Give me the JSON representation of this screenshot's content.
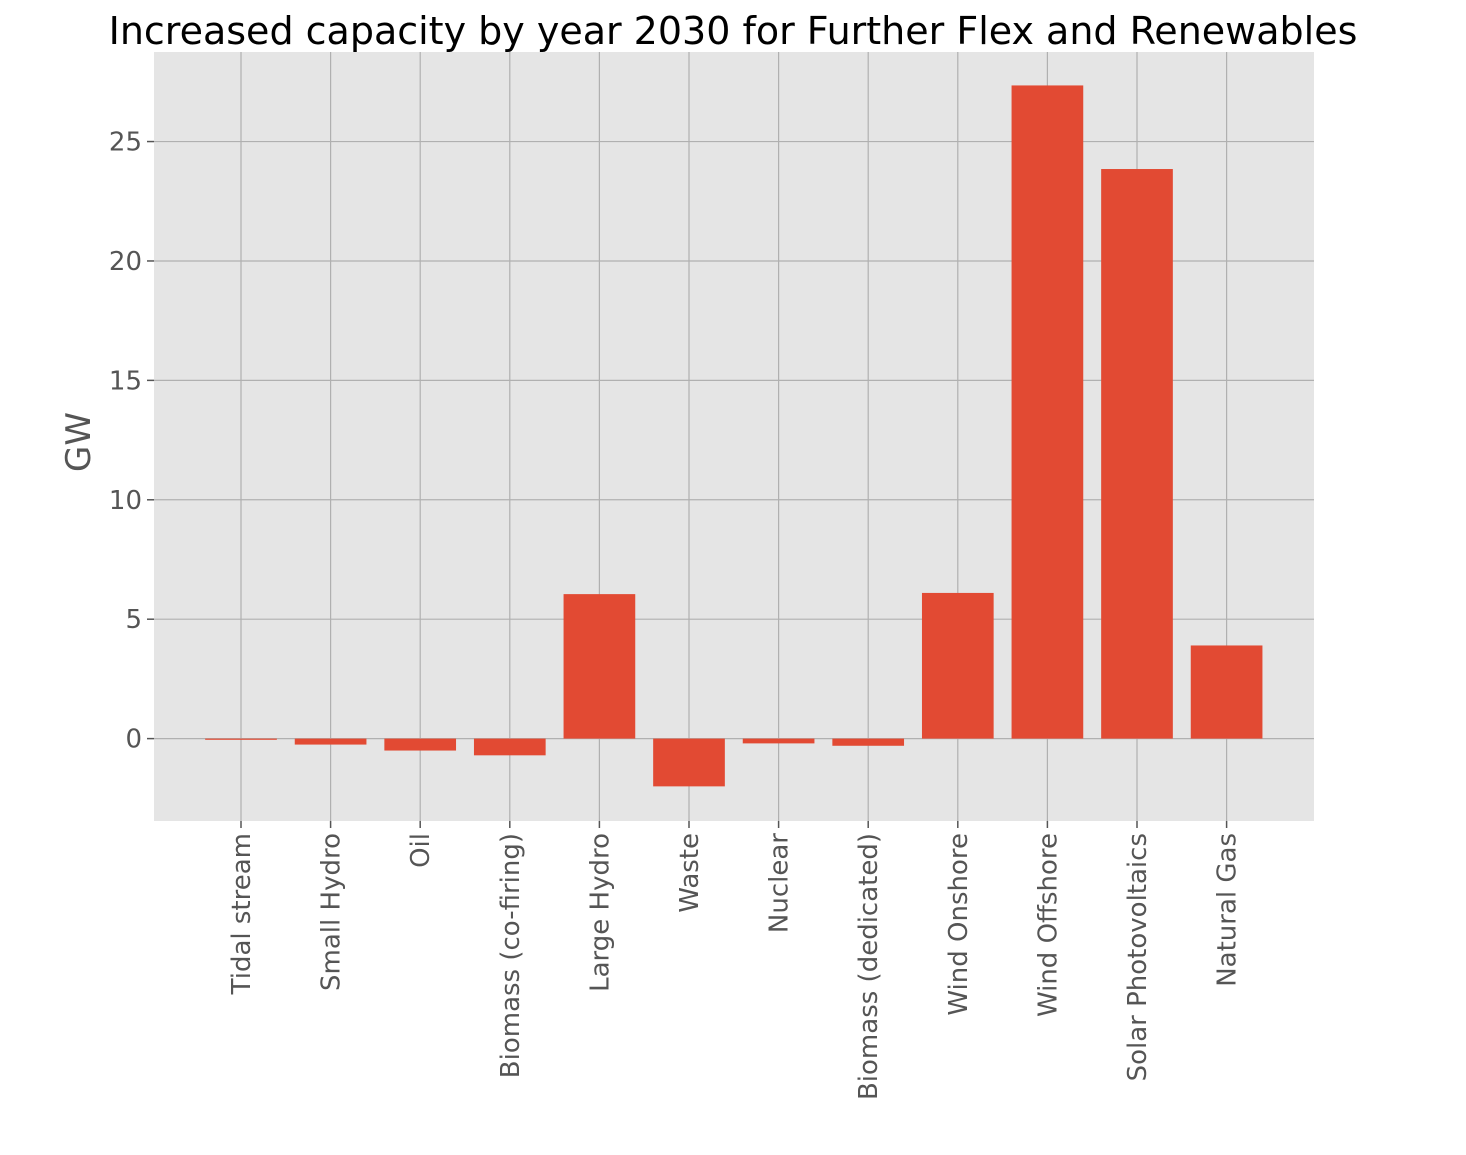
{
  "chart_data": {
    "type": "bar",
    "title": "Increased capacity by year 2030 for Further Flex and Renewables",
    "xlabel": "",
    "ylabel": "GW",
    "categories": [
      "Tidal stream",
      "Small Hydro",
      "Oil",
      "Biomass (co-firing)",
      "Large Hydro",
      "Waste",
      "Nuclear",
      "Biomass (dedicated)",
      "Wind Onshore",
      "Wind Offshore",
      "Solar Photovoltaics",
      "Natural Gas"
    ],
    "values": [
      -0.05,
      -0.25,
      -0.5,
      -0.7,
      6.05,
      -2.0,
      -0.2,
      -0.3,
      6.1,
      27.35,
      23.85,
      3.9
    ],
    "yticks": [
      0,
      5,
      10,
      15,
      20,
      25
    ],
    "ylim": [
      -3.45,
      28.75
    ],
    "grid": true,
    "colors": {
      "bar": "#E24A33",
      "background": "#E5E5E5",
      "grid": "#b0b0b0"
    }
  }
}
